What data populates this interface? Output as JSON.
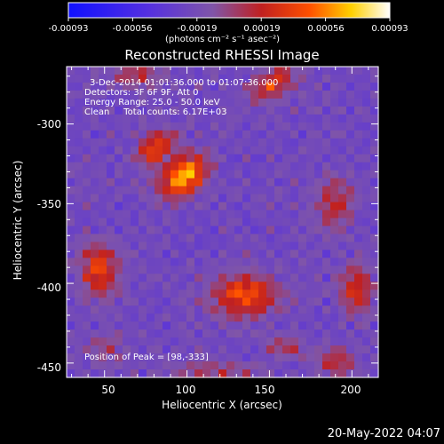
{
  "colorbar": {
    "ticks": [
      "-0.00093",
      "-0.00056",
      "-0.00019",
      "0.00019",
      "0.00056",
      "0.00093"
    ],
    "units": "(photons cm⁻² s⁻¹ asec⁻²)",
    "range": [
      -0.00093,
      0.00093
    ]
  },
  "title": "Reconstructed RHESSI Image",
  "annotation": {
    "line1": "3-Dec-2014 01:01:36.000 to 01:07:36.000",
    "line2": "Detectors: 3F 6F 9F, Att 0",
    "line3": "Energy Range: 25.0 - 50.0 keV",
    "line4": "Clean     Total counts: 6.17E+03",
    "peak": "Position of Peak = [98,-333]"
  },
  "axes": {
    "xlabel": "Heliocentric X (arcsec)",
    "ylabel": "Heliocentric Y (arcsec)",
    "xticks": [
      "50",
      "100",
      "150",
      "200"
    ],
    "yticks": [
      "-300",
      "-350",
      "-400",
      "-450"
    ]
  },
  "footer_date": "20-May-2022 04:07",
  "chart_data": {
    "type": "heatmap",
    "title": "Reconstructed RHESSI Image",
    "xlabel": "Heliocentric X (arcsec)",
    "ylabel": "Heliocentric Y (arcsec)",
    "xlim": [
      27,
      216
    ],
    "ylim": [
      -459,
      -264
    ],
    "xticks": [
      50,
      100,
      150,
      200
    ],
    "yticks": [
      -300,
      -350,
      -400,
      -450
    ],
    "colorbar_range": [
      -0.00093,
      0.00093
    ],
    "colormap": "blue-purple-red-yellow-white",
    "grid": false,
    "peak": [
      98,
      -333
    ],
    "sources": [
      {
        "x": 98,
        "y": -333,
        "sx": 11,
        "sy": 7,
        "angle": 40,
        "amp": 0.00093
      },
      {
        "x": 82,
        "y": -315,
        "sx": 9,
        "sy": 6,
        "angle": 35,
        "amp": 0.0006
      },
      {
        "x": 135,
        "y": -408,
        "sx": 14,
        "sy": 9,
        "angle": 0,
        "amp": 0.00065
      },
      {
        "x": 152,
        "y": -275,
        "sx": 10,
        "sy": 6,
        "angle": 30,
        "amp": 0.00055
      },
      {
        "x": 47,
        "y": -392,
        "sx": 8,
        "sy": 12,
        "angle": 0,
        "amp": 0.00055
      },
      {
        "x": 203,
        "y": -403,
        "sx": 7,
        "sy": 10,
        "angle": 0,
        "amp": 0.0005
      },
      {
        "x": 190,
        "y": -350,
        "sx": 8,
        "sy": 12,
        "angle": 0,
        "amp": 0.00035
      },
      {
        "x": 70,
        "y": -270,
        "sx": 10,
        "sy": 5,
        "angle": 0,
        "amp": 0.00035
      },
      {
        "x": 190,
        "y": -450,
        "sx": 8,
        "sy": 6,
        "angle": 0,
        "amp": 0.0004
      },
      {
        "x": 115,
        "y": -455,
        "sx": 18,
        "sy": 4,
        "angle": 0,
        "amp": 0.0003
      },
      {
        "x": 160,
        "y": -440,
        "sx": 8,
        "sy": 5,
        "angle": 0,
        "amp": 0.0003
      },
      {
        "x": 50,
        "y": -440,
        "sx": 8,
        "sy": 6,
        "angle": 0,
        "amp": 0.00025
      }
    ]
  }
}
